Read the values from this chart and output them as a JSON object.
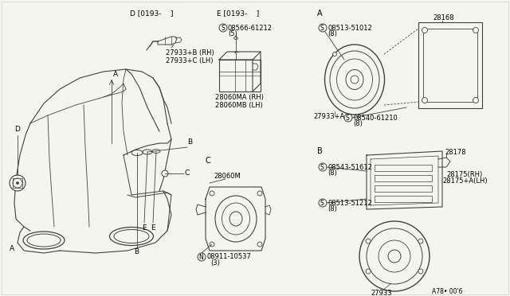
{
  "bg_color": "#f5f5f0",
  "line_color": "#404040",
  "text_color": "#000000",
  "footer": "A78• 00'6",
  "sections": {
    "D_label": "D [0193-    ]",
    "E_label": "E [0193-    ]",
    "A_label": "A",
    "B_label": "B",
    "C_label": "C",
    "D_part": "27933+B (RH)\n27933+C (LH)",
    "E_screw_label": "08566-61212",
    "E_screw_qty": "(5)",
    "E_part": "28060MA (RH)\n28060MB (LH)",
    "A_screw1_label": "08513-51012",
    "A_screw1_qty": "(8)",
    "A_screw2_label": "08540-61210",
    "A_screw2_qty": "(8)",
    "A_part": "27933+A",
    "A_bracket": "28168",
    "B_screw1_label": "08543-51612",
    "B_screw1_qty": "(8)",
    "B_screw2_label": "08513-51212",
    "B_screw2_qty": "(8)",
    "B_part1": "28175(RH)",
    "B_part2": "28175+A(LH)",
    "B_bracket": "28178",
    "B_speaker": "27933",
    "C_part": "28060M",
    "C_bolt_label": "08911-10537",
    "C_bolt_qty": "(3)"
  }
}
